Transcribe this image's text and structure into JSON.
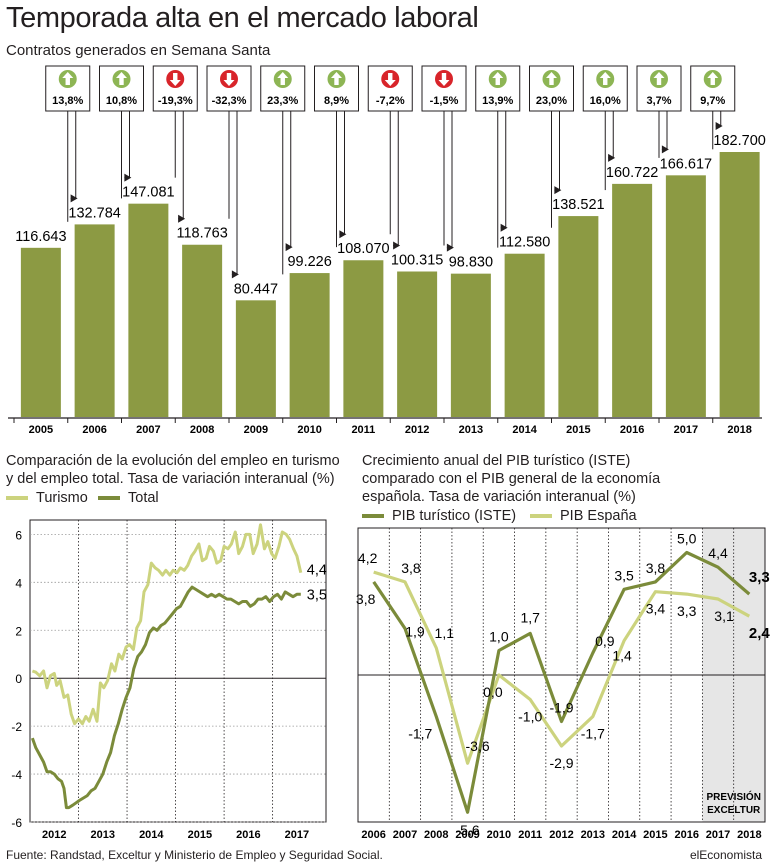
{
  "title": "Temporada alta en el mercado laboral",
  "subtitle": "Contratos generados en Semana Santa",
  "colors": {
    "bar": "#8c9a43",
    "dark_green": "#7b8b3a",
    "light_green": "#ccd37e",
    "up_icon": "#8db554",
    "down_icon": "#d8242a",
    "shade": "#e6e6e6"
  },
  "icons": {
    "up": "arrow-up-circle-icon",
    "down": "arrow-down-circle-icon"
  },
  "chart_data": [
    {
      "type": "bar",
      "title": "Contratos generados en Semana Santa",
      "categories": [
        "2005",
        "2006",
        "2007",
        "2008",
        "2009",
        "2010",
        "2011",
        "2012",
        "2013",
        "2014",
        "2015",
        "2016",
        "2017",
        "2018"
      ],
      "values": [
        116643,
        132784,
        147081,
        118763,
        80447,
        99226,
        108070,
        100315,
        98830,
        112580,
        138521,
        160722,
        166617,
        182700
      ],
      "value_labels": [
        "116.643",
        "132.784",
        "147.081",
        "118.763",
        "80.447",
        "99.226",
        "108.070",
        "100.315",
        "98.830",
        "112.580",
        "138.521",
        "160.722",
        "166.617",
        "182.700"
      ],
      "changes": [
        13.8,
        10.8,
        -19.3,
        -32.3,
        23.3,
        8.9,
        -7.2,
        -1.5,
        13.9,
        23.0,
        16.0,
        3.7,
        9.7
      ],
      "change_labels": [
        "13,8%",
        "10,8%",
        "-19,3%",
        "-32,3%",
        "23,3%",
        "8,9%",
        "-7,2%",
        "-1,5%",
        "13,9%",
        "23,0%",
        "16,0%",
        "3,7%",
        "9,7%"
      ]
    },
    {
      "type": "line",
      "title": "Comparación de la evolución del empleo en turismo y del empleo total. Tasa de variación interanual (%)",
      "ylim": [
        -6,
        6.6
      ],
      "yticks": [
        6,
        4,
        2,
        0,
        -2,
        -4,
        -6
      ],
      "ytick_labels": [
        "6",
        "4",
        "2",
        "0",
        "-2",
        "-4",
        "-6"
      ],
      "xticks": [
        "2012",
        "2013",
        "2014",
        "2015",
        "2016",
        "2017"
      ],
      "xlim": [
        2011.5,
        2017.6
      ],
      "series": [
        {
          "name": "Turismo",
          "end_label": "4,4",
          "points": [
            [
              2011.55,
              0.3
            ],
            [
              2011.62,
              0.25
            ],
            [
              2011.7,
              0.1
            ],
            [
              2011.78,
              0.3
            ],
            [
              2011.85,
              -0.4
            ],
            [
              2011.92,
              0.1
            ],
            [
              2012.0,
              0.2
            ],
            [
              2012.05,
              -0.3
            ],
            [
              2012.12,
              -0.1
            ],
            [
              2012.2,
              -0.8
            ],
            [
              2012.28,
              -0.7
            ],
            [
              2012.35,
              -1.5
            ],
            [
              2012.42,
              -1.9
            ],
            [
              2012.5,
              -1.7
            ],
            [
              2012.58,
              -1.9
            ],
            [
              2012.65,
              -1.6
            ],
            [
              2012.72,
              -1.8
            ],
            [
              2012.8,
              -1.3
            ],
            [
              2012.88,
              -1.8
            ],
            [
              2012.95,
              -0.2
            ],
            [
              2013.02,
              -0.4
            ],
            [
              2013.1,
              -0.1
            ],
            [
              2013.18,
              0.6
            ],
            [
              2013.25,
              0.3
            ],
            [
              2013.33,
              1.0
            ],
            [
              2013.4,
              0.8
            ],
            [
              2013.48,
              1.3
            ],
            [
              2013.55,
              1.4
            ],
            [
              2013.63,
              1.2
            ],
            [
              2013.7,
              2.1
            ],
            [
              2013.78,
              2.4
            ],
            [
              2013.85,
              3.6
            ],
            [
              2013.93,
              3.9
            ],
            [
              2014.0,
              4.8
            ],
            [
              2014.08,
              4.6
            ],
            [
              2014.15,
              4.5
            ],
            [
              2014.23,
              4.3
            ],
            [
              2014.3,
              4.5
            ],
            [
              2014.38,
              4.3
            ],
            [
              2014.45,
              4.5
            ],
            [
              2014.53,
              4.4
            ],
            [
              2014.6,
              4.6
            ],
            [
              2014.68,
              4.5
            ],
            [
              2014.75,
              4.7
            ],
            [
              2014.83,
              5.1
            ],
            [
              2014.9,
              5.3
            ],
            [
              2014.98,
              5.6
            ],
            [
              2015.05,
              4.9
            ],
            [
              2015.13,
              5.0
            ],
            [
              2015.2,
              5.5
            ],
            [
              2015.28,
              5.3
            ],
            [
              2015.35,
              4.8
            ],
            [
              2015.43,
              4.9
            ],
            [
              2015.5,
              5.5
            ],
            [
              2015.58,
              5.4
            ],
            [
              2015.65,
              5.6
            ],
            [
              2015.73,
              6.1
            ],
            [
              2015.8,
              5.2
            ],
            [
              2015.88,
              5.5
            ],
            [
              2015.95,
              6.0
            ],
            [
              2016.03,
              6.0
            ],
            [
              2016.1,
              5.2
            ],
            [
              2016.18,
              5.6
            ],
            [
              2016.25,
              6.4
            ],
            [
              2016.33,
              5.4
            ],
            [
              2016.4,
              5.7
            ],
            [
              2016.48,
              5.2
            ],
            [
              2016.55,
              5.0
            ],
            [
              2016.63,
              5.5
            ],
            [
              2016.7,
              6.1
            ],
            [
              2016.78,
              6.0
            ],
            [
              2016.85,
              5.8
            ],
            [
              2016.93,
              5.4
            ],
            [
              2017.0,
              5.1
            ],
            [
              2017.08,
              4.4
            ]
          ]
        },
        {
          "name": "Total",
          "end_label": "3,5",
          "points": [
            [
              2011.55,
              -2.5
            ],
            [
              2011.62,
              -2.9
            ],
            [
              2011.7,
              -3.2
            ],
            [
              2011.78,
              -3.5
            ],
            [
              2011.85,
              -3.9
            ],
            [
              2011.92,
              -3.9
            ],
            [
              2012.0,
              -4.0
            ],
            [
              2012.08,
              -4.2
            ],
            [
              2012.15,
              -4.3
            ],
            [
              2012.2,
              -4.6
            ],
            [
              2012.25,
              -5.4
            ],
            [
              2012.3,
              -5.4
            ],
            [
              2012.38,
              -5.3
            ],
            [
              2012.45,
              -5.2
            ],
            [
              2012.52,
              -5.1
            ],
            [
              2012.6,
              -5.0
            ],
            [
              2012.68,
              -4.9
            ],
            [
              2012.76,
              -4.7
            ],
            [
              2012.84,
              -4.6
            ],
            [
              2012.92,
              -4.3
            ],
            [
              2013.0,
              -4.0
            ],
            [
              2013.08,
              -3.5
            ],
            [
              2013.16,
              -3.1
            ],
            [
              2013.24,
              -2.4
            ],
            [
              2013.32,
              -1.9
            ],
            [
              2013.4,
              -1.3
            ],
            [
              2013.48,
              -0.8
            ],
            [
              2013.56,
              -0.4
            ],
            [
              2013.64,
              0.4
            ],
            [
              2013.72,
              0.9
            ],
            [
              2013.8,
              1.1
            ],
            [
              2013.88,
              1.4
            ],
            [
              2013.96,
              1.9
            ],
            [
              2014.04,
              2.1
            ],
            [
              2014.12,
              2.0
            ],
            [
              2014.2,
              2.2
            ],
            [
              2014.28,
              2.3
            ],
            [
              2014.36,
              2.5
            ],
            [
              2014.44,
              2.7
            ],
            [
              2014.52,
              2.9
            ],
            [
              2014.6,
              3.0
            ],
            [
              2014.68,
              3.3
            ],
            [
              2014.76,
              3.6
            ],
            [
              2014.84,
              3.8
            ],
            [
              2014.92,
              3.7
            ],
            [
              2015.0,
              3.6
            ],
            [
              2015.08,
              3.5
            ],
            [
              2015.16,
              3.4
            ],
            [
              2015.24,
              3.5
            ],
            [
              2015.32,
              3.4
            ],
            [
              2015.4,
              3.5
            ],
            [
              2015.48,
              3.4
            ],
            [
              2015.56,
              3.3
            ],
            [
              2015.64,
              3.3
            ],
            [
              2015.72,
              3.2
            ],
            [
              2015.8,
              3.1
            ],
            [
              2015.88,
              3.2
            ],
            [
              2015.96,
              3.2
            ],
            [
              2016.04,
              3.0
            ],
            [
              2016.12,
              3.1
            ],
            [
              2016.2,
              3.3
            ],
            [
              2016.28,
              3.3
            ],
            [
              2016.36,
              3.4
            ],
            [
              2016.44,
              3.2
            ],
            [
              2016.52,
              3.4
            ],
            [
              2016.6,
              3.5
            ],
            [
              2016.68,
              3.3
            ],
            [
              2016.76,
              3.6
            ],
            [
              2016.84,
              3.5
            ],
            [
              2016.92,
              3.4
            ],
            [
              2017.0,
              3.5
            ],
            [
              2017.08,
              3.5
            ]
          ]
        }
      ]
    },
    {
      "type": "line",
      "title": "Crecimiento anual del PIB turístico (ISTE) comparado con el PIB general de la economía española. Tasa de variación interanual (%)",
      "categories": [
        "2006",
        "2007",
        "2008",
        "2009",
        "2010",
        "2011",
        "2012",
        "2013",
        "2014",
        "2015",
        "2016",
        "2017",
        "2018"
      ],
      "ylim": [
        -6,
        6
      ],
      "forecast_label": [
        "PREVISIÓN",
        "EXCELTUR"
      ],
      "series": [
        {
          "name": "PIB turístico (ISTE)",
          "values": [
            3.8,
            1.9,
            -1.7,
            -5.6,
            1.0,
            1.7,
            -1.9,
            0.9,
            3.5,
            3.8,
            5.0,
            4.4,
            3.3
          ],
          "labels": [
            "3,8",
            "1,9",
            "-1,7",
            "-5,6",
            "1,0",
            "1,7",
            "-1,9",
            "0,9",
            "3,5",
            "3,8",
            "5,0",
            "4,4",
            "3,3"
          ]
        },
        {
          "name": "PIB España",
          "values": [
            4.2,
            3.8,
            1.1,
            -3.6,
            0.0,
            -1.0,
            -2.9,
            -1.7,
            1.4,
            3.4,
            3.3,
            3.1,
            2.4
          ],
          "labels": [
            "4,2",
            "3,8",
            "1,1",
            "-3,6",
            "0,0",
            "-1,0",
            "-2,9",
            "-1,7",
            "1,4",
            "3,4",
            "3,3",
            "3,1",
            "2,4"
          ]
        }
      ]
    }
  ],
  "footer": {
    "source": "Fuente: Randstad, Exceltur y Ministerio de Empleo y Seguridad Social.",
    "brand": "elEconomista"
  }
}
